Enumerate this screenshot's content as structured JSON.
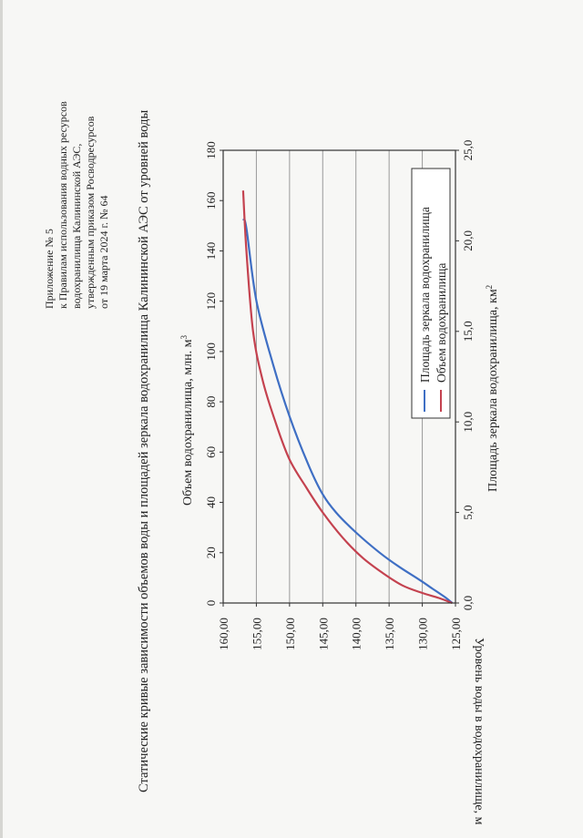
{
  "header": {
    "lines": [
      "Приложение № 5",
      "к Правилам использования водных ресурсов",
      "водохранилища Калининской АЭС,",
      "утвержденным приказом Росводресурсов",
      "от 19 марта 2024 г. № 64"
    ]
  },
  "colors": {
    "area": "#3f6fc4",
    "volume": "#c4424f",
    "grid": "#9a9a9a",
    "frame": "#333333"
  },
  "chart_data": {
    "type": "line",
    "orientation": "rotated-90-ccw",
    "title": "Статические кривые зависимости объемов воды и площадей зеркала водохранилища Калининской АЭС от уровней воды",
    "level_axis": {
      "label": "Уровень воды в водохранилище, м",
      "range": [
        125,
        160
      ],
      "ticks": [
        160,
        155,
        150,
        145,
        140,
        135,
        130,
        125
      ],
      "tick_labels": [
        "160,00",
        "155,00",
        "150,00",
        "145,00",
        "140,00",
        "135,00",
        "130,00",
        "125,00"
      ]
    },
    "volume_axis": {
      "label": "Объем водохранилища, млн. м",
      "label_sup": "3",
      "range": [
        0,
        180
      ],
      "ticks": [
        0,
        20,
        40,
        60,
        80,
        100,
        120,
        140,
        160,
        180
      ],
      "tick_labels": [
        "0",
        "20",
        "40",
        "60",
        "80",
        "100",
        "120",
        "140",
        "160",
        "180"
      ]
    },
    "area_axis": {
      "label": "Площадь зеркала водохранилища, км",
      "label_sup": "2",
      "range": [
        0,
        25
      ],
      "ticks": [
        0,
        5,
        10,
        15,
        20,
        25
      ],
      "tick_labels": [
        "0,0",
        "5,0",
        "10,0",
        "15,0",
        "20,0",
        "25,0"
      ]
    },
    "series": [
      {
        "name": "Площадь зеркала водохранилища",
        "axis": "area",
        "points": [
          [
            125.5,
            0.0
          ],
          [
            126.5,
            0.3
          ],
          [
            128.5,
            0.8
          ],
          [
            130.5,
            1.3
          ],
          [
            133.5,
            2.0
          ],
          [
            136.5,
            2.8
          ],
          [
            140.0,
            3.9
          ],
          [
            143.0,
            5.0
          ],
          [
            145.0,
            6.0
          ],
          [
            147.0,
            7.5
          ],
          [
            150.0,
            10.3
          ],
          [
            152.5,
            13.2
          ],
          [
            155.0,
            16.7
          ],
          [
            156.5,
            20.7
          ],
          [
            157.0,
            21.2
          ]
        ]
      },
      {
        "name": "Объем водохранилища",
        "axis": "volume",
        "points": [
          [
            125.5,
            0.0
          ],
          [
            127.5,
            2.0
          ],
          [
            130.0,
            4.0
          ],
          [
            133.0,
            7.0
          ],
          [
            136.0,
            12.0
          ],
          [
            139.0,
            18.0
          ],
          [
            142.0,
            26.0
          ],
          [
            145.0,
            36.0
          ],
          [
            147.5,
            46.0
          ],
          [
            150.0,
            57.0
          ],
          [
            152.0,
            71.0
          ],
          [
            154.0,
            88.0
          ],
          [
            155.5,
            108.0
          ],
          [
            156.5,
            140.0
          ],
          [
            157.0,
            164.0
          ]
        ]
      }
    ],
    "legend": {
      "placement": "upper-right",
      "items": [
        "Площадь зеркала водохранилища",
        "Объем водохранилища"
      ]
    },
    "grid": true
  }
}
